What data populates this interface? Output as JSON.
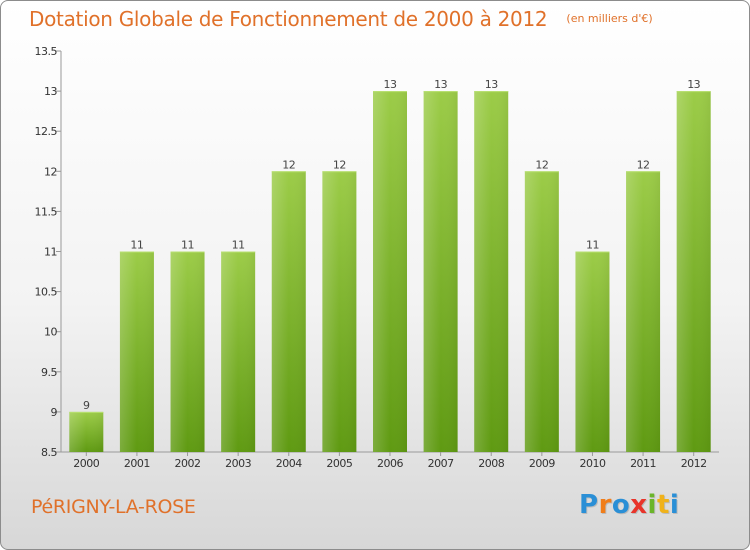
{
  "chart_data": {
    "type": "bar",
    "title": "Dotation Globale de Fonctionnement de 2000 à 2012",
    "unit": "(en milliers d'€)",
    "categories": [
      "2000",
      "2001",
      "2002",
      "2003",
      "2004",
      "2005",
      "2006",
      "2007",
      "2008",
      "2009",
      "2010",
      "2011",
      "2012"
    ],
    "values": [
      9,
      11,
      11,
      11,
      12,
      12,
      13,
      13,
      13,
      12,
      11,
      12,
      13
    ],
    "ylim": [
      8.5,
      13.5
    ],
    "yticks": [
      "8.5",
      "9",
      "9.5",
      "10",
      "10.5",
      "11",
      "11.5",
      "12",
      "12.5",
      "13",
      "13.5"
    ],
    "xlabel": "",
    "ylabel": "",
    "grid": false,
    "bar_color_top": "#9ccc48",
    "bar_color_bottom": "#5f9a12"
  },
  "footer": {
    "commune": "PéRIGNY-LA-ROSE",
    "logo_letters": [
      "P",
      "r",
      "o",
      "x",
      "i",
      "t",
      "i"
    ],
    "logo_colors": [
      "#2a8fd6",
      "#f07d1a",
      "#2a8fd6",
      "#e8342a",
      "#6bb52a",
      "#f0b21a",
      "#2a8fd6"
    ]
  }
}
